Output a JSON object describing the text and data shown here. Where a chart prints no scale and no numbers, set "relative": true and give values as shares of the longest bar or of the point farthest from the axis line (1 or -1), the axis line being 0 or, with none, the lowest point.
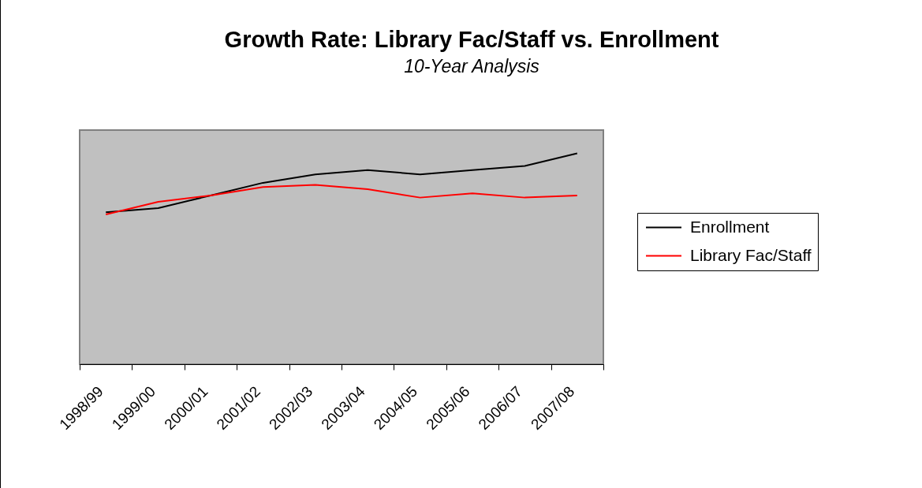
{
  "chart_data": {
    "type": "line",
    "title": "Growth Rate:  Library Fac/Staff vs. Enrollment",
    "subtitle": "10-Year Analysis",
    "categories": [
      "1998/99",
      "1999/00",
      "2000/01",
      "2001/02",
      "2002/03",
      "2003/04",
      "2004/05",
      "2005/06",
      "2006/07",
      "2007/08"
    ],
    "relative": true,
    "series": [
      {
        "name": "Enrollment",
        "color": "#000000",
        "values": [
          0.72,
          0.74,
          0.8,
          0.86,
          0.9,
          0.92,
          0.9,
          0.92,
          0.94,
          1
        ]
      },
      {
        "name": "Library Fac/Staff",
        "color": "#ff0000",
        "values": [
          0.71,
          0.77,
          0.8,
          0.84,
          0.85,
          0.83,
          0.79,
          0.81,
          0.79,
          0.8
        ]
      }
    ],
    "legend": "right"
  }
}
